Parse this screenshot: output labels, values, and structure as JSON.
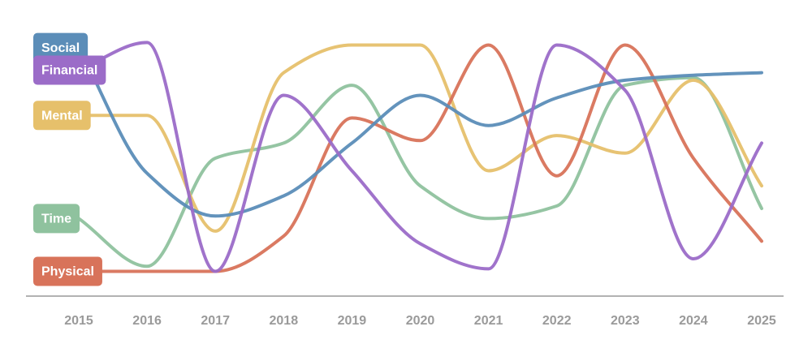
{
  "chart_data": {
    "type": "line",
    "categories": [
      "2015",
      "2016",
      "2017",
      "2018",
      "2019",
      "2020",
      "2021",
      "2022",
      "2023",
      "2024",
      "2025"
    ],
    "ylim": [
      0,
      100
    ],
    "series": [
      {
        "name": "Time",
        "color": "#8fc29e",
        "values": [
          26,
          7,
          50,
          56,
          79,
          39,
          26,
          31,
          79,
          82,
          30
        ]
      },
      {
        "name": "Mental",
        "color": "#e6c06b",
        "values": [
          67,
          67,
          21,
          84,
          95,
          95,
          45,
          59,
          52,
          81,
          39
        ]
      },
      {
        "name": "Physical",
        "color": "#d8735a",
        "values": [
          5,
          5,
          5,
          19,
          66,
          57,
          95,
          43,
          95,
          50,
          17
        ]
      },
      {
        "name": "Social",
        "color": "#5b8db8",
        "values": [
          94,
          44,
          27,
          35,
          56,
          75,
          63,
          74,
          81,
          83,
          84
        ]
      },
      {
        "name": "Financial",
        "color": "#9b6cc8",
        "values": [
          85,
          96,
          5,
          75,
          45,
          16,
          6,
          95,
          77,
          10,
          56
        ]
      }
    ]
  }
}
